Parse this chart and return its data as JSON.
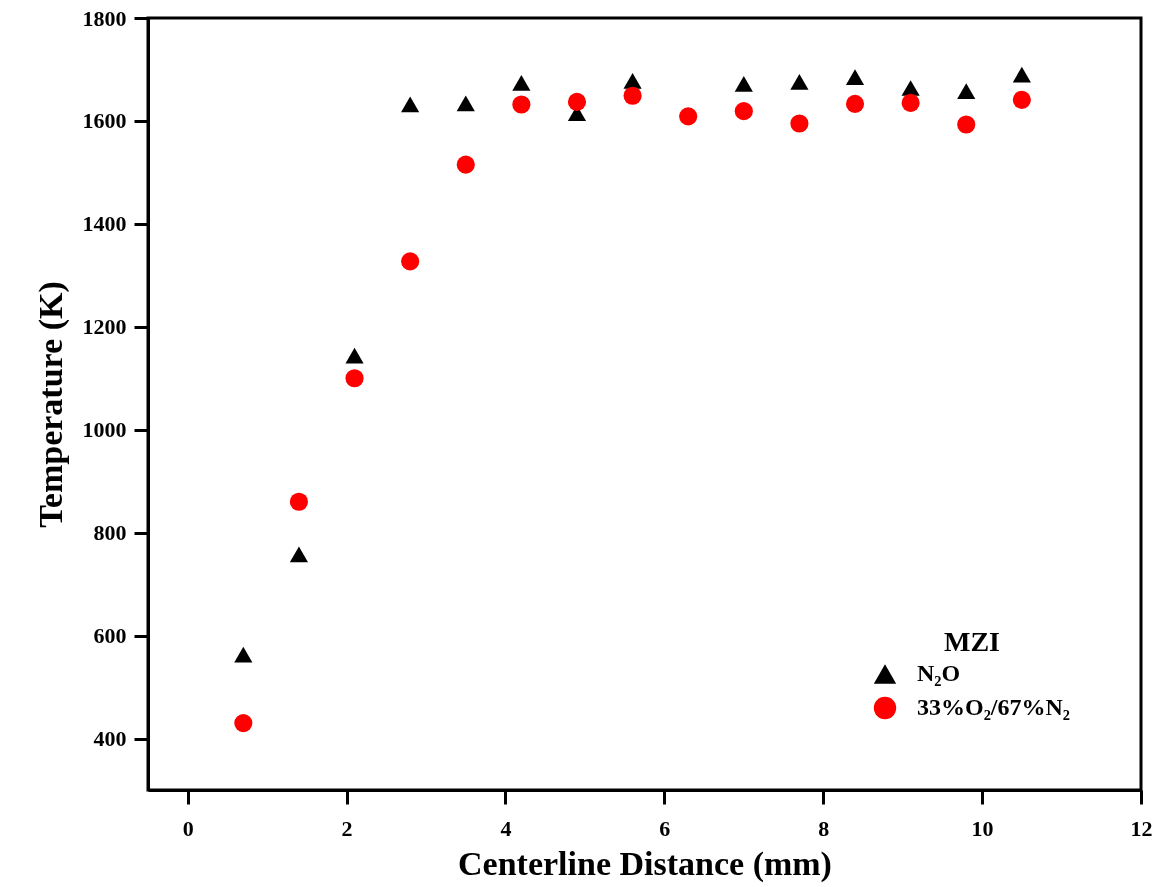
{
  "chart_data": {
    "type": "scatter",
    "xlabel": "Centerline Distance (mm)",
    "ylabel": "Temperature (K)",
    "legend_title": "MZI",
    "x": [
      0.7,
      1.4,
      2.1,
      2.8,
      3.5,
      4.2,
      4.9,
      5.6,
      6.3,
      7.0,
      7.7,
      8.4,
      9.1,
      9.8,
      10.5
    ],
    "series": [
      {
        "name": "N₂O",
        "color": "#000000",
        "marker": "triangle",
        "values": [
          563,
          758,
          1144,
          1632,
          1634,
          1674,
          1615,
          1678,
          null,
          1672,
          1676,
          1685,
          1664,
          1658,
          1690
        ]
      },
      {
        "name": "33%O₂/67%N₂",
        "color": "#ff0000",
        "marker": "circle",
        "values": [
          430,
          860,
          1100,
          1327,
          1515,
          1632,
          1637,
          1649,
          1609,
          1619,
          1595,
          1633,
          1635,
          1593,
          1641
        ]
      }
    ],
    "xlim": [
      -0.5,
      12
    ],
    "ylim": [
      300,
      1800
    ],
    "xticks": [
      0,
      2,
      4,
      6,
      8,
      10,
      12
    ],
    "yticks": [
      400,
      600,
      800,
      1000,
      1200,
      1400,
      1600,
      1800
    ],
    "grid": false,
    "legend": "bottom right"
  }
}
